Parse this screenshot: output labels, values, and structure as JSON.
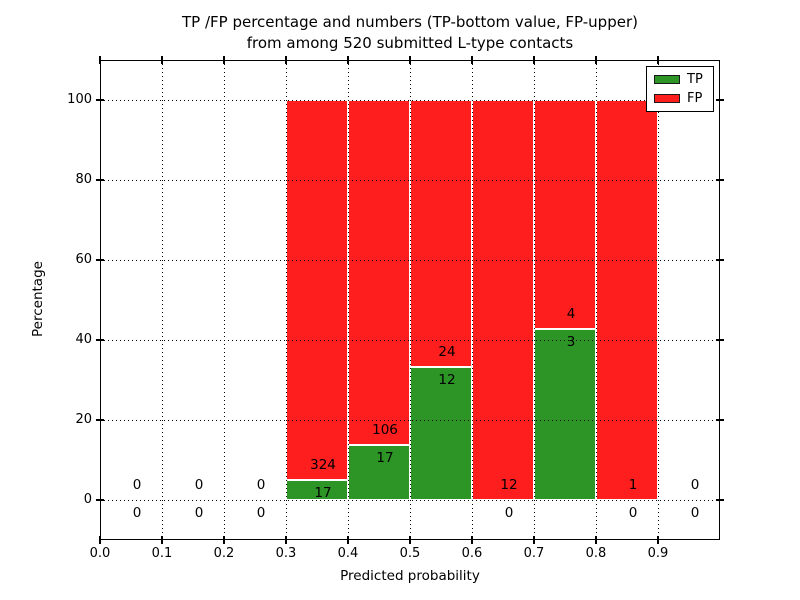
{
  "figure": {
    "title_line1": "TP /FP percentage and numbers (TP-bottom value, FP-upper)",
    "title_line2": "from among 520 submitted L-type contacts"
  },
  "axes": {
    "xlabel": "Predicted probability",
    "ylabel": "Percentage",
    "xtick_labels": [
      "0.0",
      "0.1",
      "0.2",
      "0.3",
      "0.4",
      "0.5",
      "0.6",
      "0.7",
      "0.8",
      "0.9"
    ],
    "ytick_values": [
      0,
      20,
      40,
      60,
      80,
      100
    ],
    "xlim": [
      0.0,
      1.0
    ],
    "ylim": [
      -10,
      110
    ],
    "grid_style": "dotted"
  },
  "legend": {
    "position": "upper right",
    "entries": [
      {
        "label": "TP",
        "color": "#2d9426"
      },
      {
        "label": "FP",
        "color": "#ff1e1e"
      }
    ]
  },
  "chart_data": {
    "type": "bar",
    "stacked": true,
    "normalized_to_percent": 100,
    "title": "TP /FP percentage and numbers (TP-bottom value, FP-upper) from among 520 submitted L-type contacts",
    "xlabel": "Predicted probability",
    "ylabel": "Percentage",
    "total_contacts": 520,
    "bin_width": 0.1,
    "bin_starts": [
      0.0,
      0.1,
      0.2,
      0.3,
      0.4,
      0.5,
      0.6,
      0.7,
      0.8,
      0.9
    ],
    "series": [
      {
        "name": "TP",
        "color": "#2d9426",
        "counts": [
          0,
          0,
          0,
          17,
          17,
          12,
          0,
          3,
          0,
          0
        ]
      },
      {
        "name": "FP",
        "color": "#ff1e1e",
        "counts": [
          0,
          0,
          0,
          324,
          106,
          24,
          12,
          4,
          1,
          0
        ]
      }
    ],
    "tp_percent_of_bin": [
      null,
      null,
      null,
      5.0,
      13.8,
      33.3,
      0.0,
      42.9,
      0.0,
      null
    ],
    "annotation_note": "FP count printed above green/red boundary, TP count printed below it; bins with no contacts show 0 above and below the x-axis"
  }
}
